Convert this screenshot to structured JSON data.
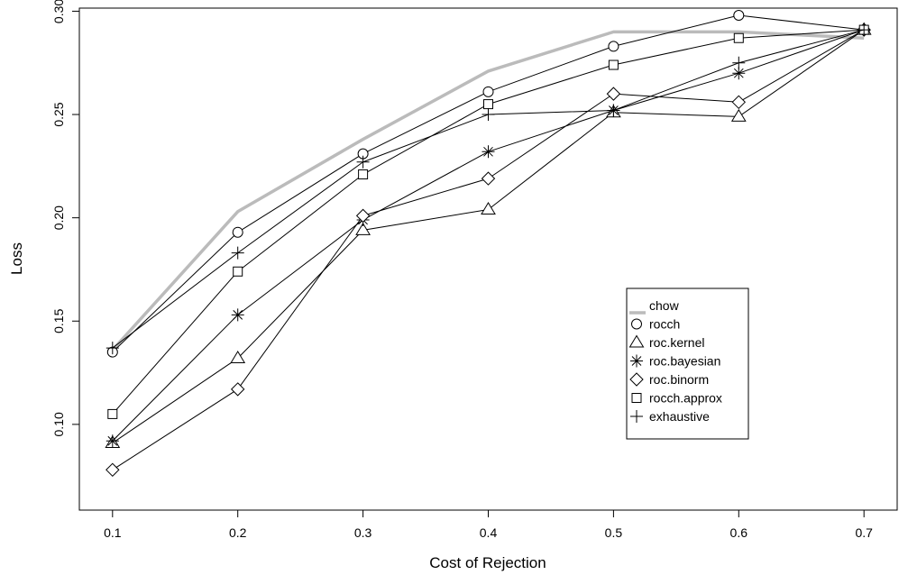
{
  "chart_data": {
    "type": "line",
    "title": "",
    "xlabel": "Cost of Rejection",
    "ylabel": "Loss",
    "xlim": [
      0.0735,
      0.7265
    ],
    "ylim": [
      0.0585,
      0.3015
    ],
    "xticks": [
      "0.1",
      "0.2",
      "0.3",
      "0.4",
      "0.5",
      "0.6",
      "0.7"
    ],
    "yticks": [
      "0.10",
      "0.15",
      "0.20",
      "0.25",
      "0.30"
    ],
    "x": [
      0.1,
      0.2,
      0.3,
      0.4,
      0.5,
      0.6,
      0.7
    ],
    "grid": false,
    "legend_position": "center-right",
    "series": [
      {
        "name": "chow",
        "marker": "none",
        "color": "#bbbbbb",
        "values": [
          0.136,
          0.203,
          0.238,
          0.271,
          0.29,
          0.29,
          0.287
        ]
      },
      {
        "name": "rocch",
        "marker": "circle",
        "color": "#000000",
        "values": [
          0.135,
          0.193,
          0.231,
          0.261,
          0.283,
          0.298,
          0.291
        ]
      },
      {
        "name": "roc.kernel",
        "marker": "triangle",
        "color": "#000000",
        "values": [
          0.091,
          0.132,
          0.194,
          0.204,
          0.251,
          0.249,
          0.291
        ]
      },
      {
        "name": "roc.bayesian",
        "marker": "asterisk",
        "color": "#000000",
        "values": [
          0.092,
          0.153,
          0.199,
          0.232,
          0.252,
          0.27,
          0.291
        ]
      },
      {
        "name": "roc.binorm",
        "marker": "diamond",
        "color": "#000000",
        "values": [
          0.078,
          0.117,
          0.201,
          0.219,
          0.26,
          0.256,
          0.291
        ]
      },
      {
        "name": "rocch.approx",
        "marker": "square",
        "color": "#000000",
        "values": [
          0.105,
          0.174,
          0.221,
          0.255,
          0.274,
          0.287,
          0.291
        ]
      },
      {
        "name": "exhaustive",
        "marker": "plus",
        "color": "#000000",
        "values": [
          0.137,
          0.183,
          0.227,
          0.25,
          0.252,
          0.275,
          0.291
        ]
      }
    ]
  }
}
